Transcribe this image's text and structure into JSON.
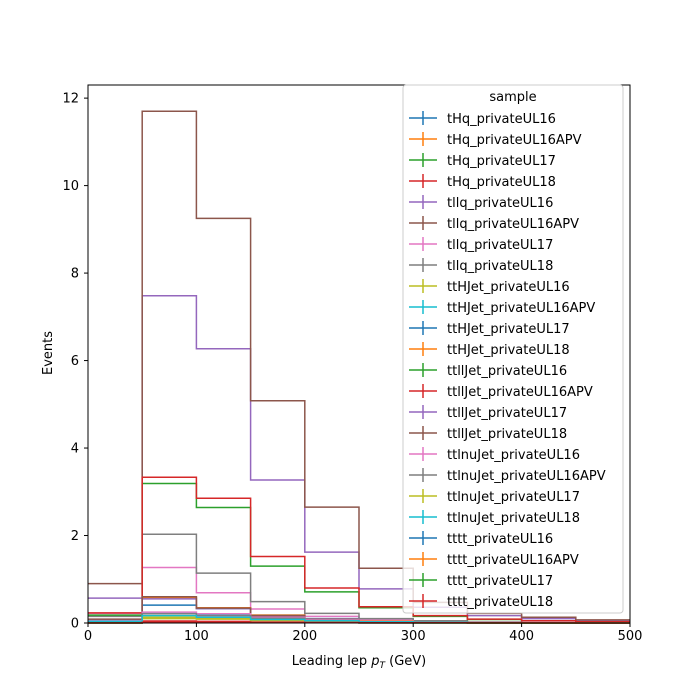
{
  "chart_data": {
    "type": "step",
    "xlabel": "Leading lep",
    "xlabel_sub": "T",
    "xlabel_var": "p",
    "xlabel_unit": "(GeV)",
    "ylabel": "Events",
    "xlim": [
      0,
      500
    ],
    "ylim": [
      0,
      12.3
    ],
    "bin_edges": [
      0,
      50,
      100,
      150,
      200,
      250,
      300,
      350,
      400,
      450,
      500
    ],
    "x_ticks": [
      0,
      100,
      200,
      300,
      400,
      500
    ],
    "y_ticks": [
      0,
      2,
      4,
      6,
      8,
      10,
      12
    ],
    "legend_title": "sample",
    "legend_position": "top-right",
    "series": [
      {
        "name": "tHq_privateUL16",
        "color": "#1f77b4",
        "values": [
          0.003,
          0.015,
          0.012,
          0.008,
          0.005,
          0.003,
          0.002,
          0.001,
          0.001,
          0.001
        ]
      },
      {
        "name": "tHq_privateUL16APV",
        "color": "#ff7f0e",
        "values": [
          0.003,
          0.014,
          0.011,
          0.007,
          0.004,
          0.003,
          0.002,
          0.001,
          0.001,
          0.001
        ]
      },
      {
        "name": "tHq_privateUL17",
        "color": "#2ca02c",
        "values": [
          0.006,
          0.03,
          0.025,
          0.016,
          0.01,
          0.006,
          0.004,
          0.003,
          0.002,
          0.001
        ]
      },
      {
        "name": "tHq_privateUL18",
        "color": "#d62728",
        "values": [
          0.009,
          0.045,
          0.036,
          0.023,
          0.014,
          0.009,
          0.006,
          0.004,
          0.003,
          0.002
        ]
      },
      {
        "name": "tllq_privateUL16",
        "color": "#9467bd",
        "values": [
          0.57,
          7.48,
          6.27,
          3.27,
          1.62,
          0.78,
          0.36,
          0.17,
          0.1,
          0.05
        ]
      },
      {
        "name": "tllq_privateUL16APV",
        "color": "#8c564b",
        "values": [
          0.9,
          11.7,
          9.25,
          5.08,
          2.65,
          1.25,
          0.47,
          0.22,
          0.13,
          0.07
        ]
      },
      {
        "name": "tllq_privateUL17",
        "color": "#e377c2",
        "values": [
          0.22,
          1.27,
          0.69,
          0.32,
          0.15,
          0.07,
          0.03,
          0.02,
          0.01,
          0.01
        ]
      },
      {
        "name": "tllq_privateUL18",
        "color": "#7f7f7f",
        "values": [
          0.15,
          2.03,
          1.14,
          0.49,
          0.22,
          0.1,
          0.05,
          0.02,
          0.01,
          0.01
        ]
      },
      {
        "name": "ttHJet_privateUL16",
        "color": "#bcbd22",
        "values": [
          0.01,
          0.1,
          0.09,
          0.06,
          0.04,
          0.02,
          0.01,
          0.01,
          0.005,
          0.003
        ]
      },
      {
        "name": "ttHJet_privateUL16APV",
        "color": "#17becf",
        "values": [
          0.02,
          0.22,
          0.18,
          0.1,
          0.06,
          0.03,
          0.02,
          0.01,
          0.005,
          0.003
        ]
      },
      {
        "name": "ttHJet_privateUL17",
        "color": "#1f77b4",
        "values": [
          0.05,
          0.41,
          0.33,
          0.18,
          0.1,
          0.05,
          0.03,
          0.015,
          0.008,
          0.004
        ]
      },
      {
        "name": "ttHJet_privateUL18",
        "color": "#ff7f0e",
        "values": [
          0.07,
          0.58,
          0.35,
          0.18,
          0.09,
          0.05,
          0.025,
          0.012,
          0.006,
          0.003
        ]
      },
      {
        "name": "ttllJet_privateUL16",
        "color": "#2ca02c",
        "values": [
          0.18,
          3.19,
          2.64,
          1.3,
          0.71,
          0.35,
          0.15,
          0.08,
          0.05,
          0.03
        ]
      },
      {
        "name": "ttllJet_privateUL16APV",
        "color": "#d62728",
        "values": [
          0.23,
          3.33,
          2.85,
          1.52,
          0.8,
          0.37,
          0.17,
          0.09,
          0.05,
          0.03
        ]
      },
      {
        "name": "ttllJet_privateUL17",
        "color": "#9467bd",
        "values": [
          0.08,
          0.55,
          0.33,
          0.16,
          0.08,
          0.04,
          0.02,
          0.01,
          0.006,
          0.003
        ]
      },
      {
        "name": "ttllJet_privateUL18",
        "color": "#8c564b",
        "values": [
          0.09,
          0.6,
          0.34,
          0.17,
          0.08,
          0.04,
          0.02,
          0.01,
          0.006,
          0.003
        ]
      },
      {
        "name": "ttlnuJet_privateUL16",
        "color": "#e377c2",
        "values": [
          0.05,
          0.25,
          0.21,
          0.13,
          0.08,
          0.04,
          0.02,
          0.01,
          0.006,
          0.003
        ]
      },
      {
        "name": "ttlnuJet_privateUL16APV",
        "color": "#7f7f7f",
        "values": [
          0.04,
          0.21,
          0.17,
          0.11,
          0.06,
          0.03,
          0.02,
          0.01,
          0.005,
          0.003
        ]
      },
      {
        "name": "ttlnuJet_privateUL17",
        "color": "#bcbd22",
        "values": [
          0.03,
          0.13,
          0.1,
          0.06,
          0.04,
          0.02,
          0.01,
          0.005,
          0.003,
          0.002
        ]
      },
      {
        "name": "ttlnuJet_privateUL18",
        "color": "#17becf",
        "values": [
          0.04,
          0.17,
          0.13,
          0.08,
          0.05,
          0.03,
          0.015,
          0.008,
          0.004,
          0.002
        ]
      },
      {
        "name": "tttt_privateUL16",
        "color": "#1f77b4",
        "values": [
          0.001,
          0.005,
          0.007,
          0.006,
          0.004,
          0.003,
          0.002,
          0.001,
          0.001,
          0.001
        ]
      },
      {
        "name": "tttt_privateUL16APV",
        "color": "#ff7f0e",
        "values": [
          0.001,
          0.005,
          0.007,
          0.006,
          0.004,
          0.003,
          0.002,
          0.001,
          0.001,
          0.001
        ]
      },
      {
        "name": "tttt_privateUL17",
        "color": "#2ca02c",
        "values": [
          0.002,
          0.01,
          0.014,
          0.012,
          0.008,
          0.005,
          0.003,
          0.002,
          0.001,
          0.001
        ]
      },
      {
        "name": "tttt_privateUL18",
        "color": "#d62728",
        "values": [
          0.003,
          0.015,
          0.02,
          0.017,
          0.011,
          0.007,
          0.004,
          0.003,
          0.002,
          0.001
        ]
      }
    ]
  }
}
